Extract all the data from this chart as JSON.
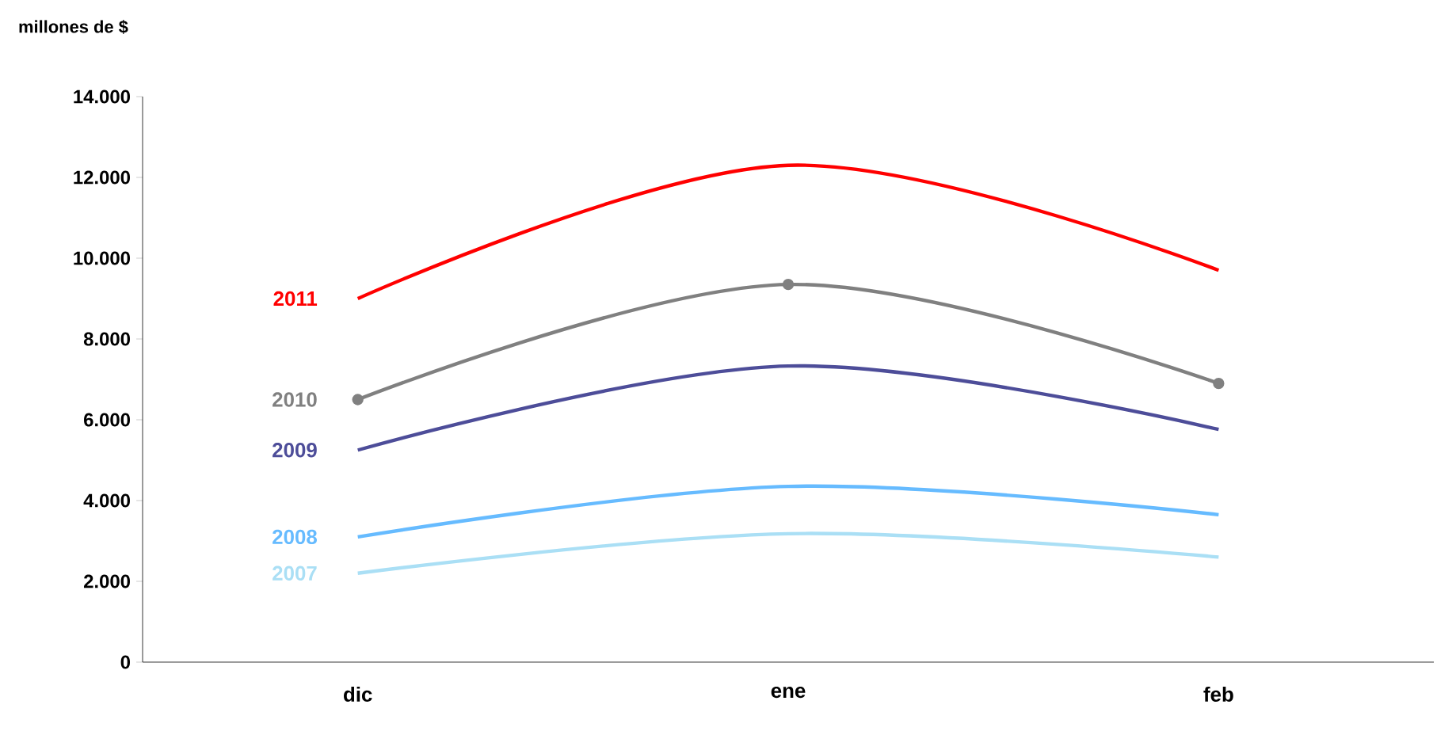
{
  "chart_data": {
    "type": "line",
    "ylabel": "millones de $",
    "categories": [
      "dic",
      "ene",
      "feb"
    ],
    "series": [
      {
        "name": "2011",
        "color": "#ff0000",
        "values": [
          9000,
          12300,
          9700
        ],
        "marker": "none"
      },
      {
        "name": "2010",
        "color": "#808080",
        "values": [
          6500,
          9350,
          6900
        ],
        "marker": "circle"
      },
      {
        "name": "2009",
        "color": "#4d4d99",
        "values": [
          5250,
          7330,
          5760
        ],
        "marker": "none"
      },
      {
        "name": "2008",
        "color": "#66bbff",
        "values": [
          3100,
          4350,
          3650
        ],
        "marker": "none"
      },
      {
        "name": "2007",
        "color": "#aadff5",
        "values": [
          2200,
          3180,
          2600
        ],
        "marker": "none"
      }
    ],
    "ylim": [
      0,
      14000
    ],
    "yticks": [
      {
        "value": 0,
        "label": "0"
      },
      {
        "value": 2000,
        "label": "2.000"
      },
      {
        "value": 4000,
        "label": "4.000"
      },
      {
        "value": 6000,
        "label": "6.000"
      },
      {
        "value": 8000,
        "label": "8.000"
      },
      {
        "value": 10000,
        "label": "10.000"
      },
      {
        "value": 12000,
        "label": "12.000"
      },
      {
        "value": 14000,
        "label": "14.000"
      }
    ],
    "grid": false,
    "line_style": "solid"
  }
}
